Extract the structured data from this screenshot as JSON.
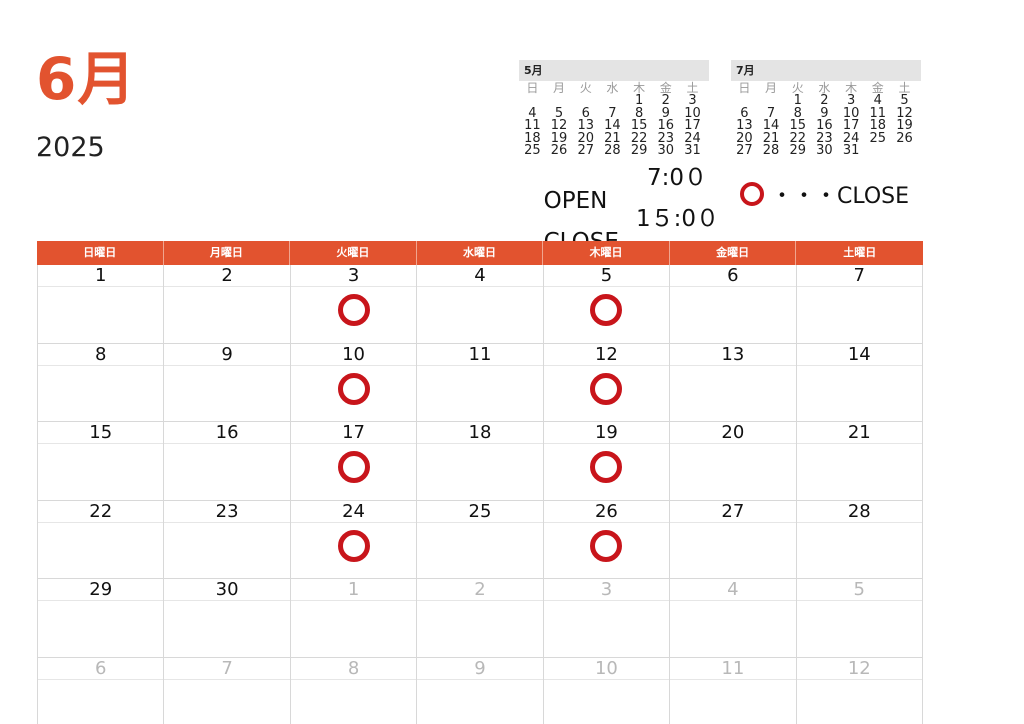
{
  "title": {
    "month": "6月",
    "year": "2025"
  },
  "mini_calendars": [
    {
      "title": "5月",
      "weekdays": [
        "日",
        "月",
        "火",
        "水",
        "木",
        "金",
        "土"
      ],
      "cells": [
        "",
        "",
        "",
        "",
        "1",
        "2",
        "3",
        "4",
        "5",
        "6",
        "7",
        "8",
        "9",
        "10",
        "11",
        "12",
        "13",
        "14",
        "15",
        "16",
        "17",
        "18",
        "19",
        "20",
        "21",
        "22",
        "23",
        "24",
        "25",
        "26",
        "27",
        "28",
        "29",
        "30",
        "31"
      ]
    },
    {
      "title": "7月",
      "weekdays": [
        "日",
        "月",
        "火",
        "水",
        "木",
        "金",
        "土"
      ],
      "cells": [
        "",
        "",
        "1",
        "2",
        "3",
        "4",
        "5",
        "6",
        "7",
        "8",
        "9",
        "10",
        "11",
        "12",
        "13",
        "14",
        "15",
        "16",
        "17",
        "18",
        "19",
        "20",
        "21",
        "22",
        "23",
        "24",
        "25",
        "26",
        "27",
        "28",
        "29",
        "30",
        "31"
      ]
    }
  ],
  "hours": {
    "open_label": "OPEN",
    "open_time": "7:0０",
    "close_label": "CLOSE",
    "close_time": "1５:0０"
  },
  "legend": {
    "text": "・・・CLOSE"
  },
  "calendar": {
    "weekdays": [
      "日曜日",
      "月曜日",
      "火曜日",
      "水曜日",
      "木曜日",
      "金曜日",
      "土曜日"
    ],
    "days": [
      {
        "day": "1"
      },
      {
        "day": "2"
      },
      {
        "day": "3",
        "closed": true
      },
      {
        "day": "4"
      },
      {
        "day": "5",
        "closed": true
      },
      {
        "day": "6"
      },
      {
        "day": "7"
      },
      {
        "day": "8"
      },
      {
        "day": "9"
      },
      {
        "day": "10",
        "closed": true
      },
      {
        "day": "11"
      },
      {
        "day": "12",
        "closed": true
      },
      {
        "day": "13"
      },
      {
        "day": "14"
      },
      {
        "day": "15"
      },
      {
        "day": "16"
      },
      {
        "day": "17",
        "closed": true
      },
      {
        "day": "18"
      },
      {
        "day": "19",
        "closed": true
      },
      {
        "day": "20"
      },
      {
        "day": "21"
      },
      {
        "day": "22"
      },
      {
        "day": "23"
      },
      {
        "day": "24",
        "closed": true
      },
      {
        "day": "25"
      },
      {
        "day": "26",
        "closed": true
      },
      {
        "day": "27"
      },
      {
        "day": "28"
      },
      {
        "day": "29"
      },
      {
        "day": "30"
      },
      {
        "day": "1",
        "other": true
      },
      {
        "day": "2",
        "other": true
      },
      {
        "day": "3",
        "other": true
      },
      {
        "day": "4",
        "other": true
      },
      {
        "day": "5",
        "other": true
      },
      {
        "day": "6",
        "other": true
      },
      {
        "day": "7",
        "other": true
      },
      {
        "day": "8",
        "other": true
      },
      {
        "day": "9",
        "other": true
      },
      {
        "day": "10",
        "other": true
      },
      {
        "day": "11",
        "other": true
      },
      {
        "day": "12",
        "other": true
      }
    ]
  },
  "colors": {
    "accent": "#e2532f",
    "closed_mark": "#c8151b",
    "other_month_text": "#b8b8b8"
  },
  "icons": {
    "closed_mark": "red-circle-icon"
  }
}
